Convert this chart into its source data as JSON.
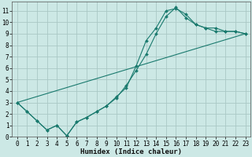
{
  "title": "",
  "xlabel": "Humidex (Indice chaleur)",
  "background_color": "#cce8e5",
  "grid_color": "#aac8c5",
  "line_color": "#1a7a6e",
  "series_zigzag": {
    "x": [
      0,
      1,
      2,
      3,
      4,
      5,
      6,
      7,
      8,
      9,
      10,
      11,
      12,
      13,
      14,
      15,
      16,
      17,
      18,
      19,
      20,
      21,
      22,
      23
    ],
    "y": [
      3.0,
      2.2,
      1.4,
      0.6,
      1.0,
      0.1,
      1.3,
      1.7,
      2.2,
      2.7,
      3.5,
      4.3,
      6.2,
      8.4,
      9.5,
      11.0,
      11.2,
      10.7,
      9.8,
      9.5,
      9.2,
      9.2,
      9.2,
      9.0
    ]
  },
  "series_curve": {
    "x": [
      0,
      1,
      2,
      3,
      4,
      5,
      6,
      7,
      8,
      9,
      10,
      11,
      12,
      13,
      14,
      15,
      16,
      17,
      18,
      19,
      20,
      21,
      22,
      23
    ],
    "y": [
      3.0,
      2.2,
      1.4,
      0.6,
      1.0,
      0.1,
      1.3,
      1.7,
      2.2,
      2.7,
      3.4,
      4.5,
      5.8,
      7.2,
      9.0,
      10.5,
      11.3,
      10.4,
      9.8,
      9.5,
      9.5,
      9.2,
      9.2,
      9.0
    ]
  },
  "series_line": {
    "x": [
      0,
      23
    ],
    "y": [
      3.0,
      9.0
    ]
  },
  "xlim": [
    -0.5,
    23.5
  ],
  "ylim": [
    0,
    11.8
  ],
  "xticks": [
    0,
    1,
    2,
    3,
    4,
    5,
    6,
    7,
    8,
    9,
    10,
    11,
    12,
    13,
    14,
    15,
    16,
    17,
    18,
    19,
    20,
    21,
    22,
    23
  ],
  "yticks": [
    0,
    1,
    2,
    3,
    4,
    5,
    6,
    7,
    8,
    9,
    10,
    11
  ],
  "xlabel_fontsize": 6.5,
  "tick_fontsize": 5.5
}
